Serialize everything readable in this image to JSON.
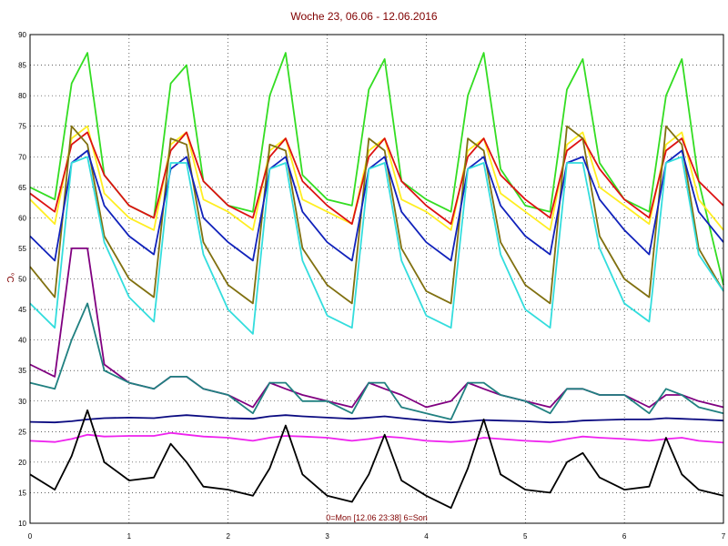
{
  "chart_data": {
    "type": "line",
    "title": "Woche 23, 06.06 - 12.06.2016",
    "ylabel": "°C",
    "footer": "0=Mon [12.06 23:38] 6=Son",
    "xlim": [
      0,
      7
    ],
    "ylim": [
      10,
      90
    ],
    "grid": true,
    "x_ticks": [
      "0",
      "1",
      "2",
      "3",
      "4",
      "5",
      "6",
      "7"
    ],
    "y_ticks": [
      "10",
      "15",
      "20",
      "25",
      "30",
      "35",
      "40",
      "45",
      "50",
      "55",
      "60",
      "65",
      "70",
      "75",
      "80",
      "85",
      "90"
    ],
    "x": [
      0.0,
      0.25,
      0.42,
      0.58,
      0.75,
      1.0,
      1.25,
      1.42,
      1.58,
      1.75,
      2.0,
      2.25,
      2.42,
      2.58,
      2.75,
      3.0,
      3.25,
      3.42,
      3.58,
      3.75,
      4.0,
      4.25,
      4.42,
      4.58,
      4.75,
      5.0,
      5.25,
      5.42,
      5.58,
      5.75,
      6.0,
      6.25,
      6.42,
      6.58,
      6.75,
      7.0
    ],
    "series": [
      {
        "color": "#33dd22",
        "values": [
          65,
          63,
          82,
          87,
          67,
          62,
          60,
          82,
          85,
          66,
          62,
          61,
          80,
          87,
          67,
          63,
          62,
          81,
          86,
          66,
          63,
          61,
          80,
          87,
          68,
          62,
          61,
          81,
          86,
          69,
          63,
          61,
          80,
          86,
          66,
          49
        ]
      },
      {
        "color": "#ffee22",
        "values": [
          63,
          59,
          73,
          75,
          64,
          60,
          58,
          72,
          74,
          63,
          61,
          58,
          71,
          73,
          63,
          61,
          59,
          71,
          73,
          63,
          61,
          58,
          71,
          73,
          64,
          61,
          58,
          72,
          74,
          65,
          62,
          59,
          72,
          74,
          63,
          58
        ]
      },
      {
        "color": "#dd1111",
        "values": [
          64,
          61,
          72,
          74,
          67,
          62,
          60,
          71,
          74,
          66,
          62,
          60,
          70,
          73,
          66,
          62,
          59,
          70,
          73,
          66,
          62,
          59,
          70,
          73,
          67,
          63,
          60,
          71,
          73,
          68,
          63,
          60,
          71,
          73,
          66,
          62
        ]
      },
      {
        "color": "#807010",
        "values": [
          52,
          47,
          75,
          72,
          57,
          50,
          47,
          73,
          72,
          56,
          49,
          46,
          72,
          71,
          55,
          49,
          46,
          73,
          71,
          55,
          48,
          46,
          73,
          71,
          56,
          49,
          46,
          75,
          73,
          57,
          50,
          47,
          75,
          72,
          55,
          48
        ]
      },
      {
        "color": "#1122bb",
        "values": [
          57,
          53,
          69,
          71,
          62,
          57,
          54,
          68,
          70,
          60,
          56,
          53,
          68,
          70,
          61,
          56,
          53,
          68,
          70,
          61,
          56,
          53,
          68,
          70,
          62,
          57,
          54,
          69,
          70,
          63,
          58,
          54,
          69,
          71,
          61,
          56
        ]
      },
      {
        "color": "#33dddd",
        "values": [
          46,
          42,
          69,
          70,
          56,
          47,
          43,
          69,
          69,
          54,
          45,
          41,
          68,
          69,
          53,
          44,
          42,
          68,
          69,
          53,
          44,
          42,
          68,
          69,
          54,
          45,
          42,
          69,
          69,
          55,
          46,
          43,
          69,
          70,
          54,
          48
        ]
      },
      {
        "color": "#800080",
        "values": [
          36,
          34,
          55,
          55,
          36,
          33,
          32,
          34,
          34,
          32,
          31,
          29,
          33,
          32,
          31,
          30,
          29,
          33,
          32,
          31,
          29,
          30,
          33,
          32,
          31,
          30,
          29,
          32,
          32,
          31,
          31,
          29,
          31,
          31,
          30,
          29
        ]
      },
      {
        "color": "#208080",
        "values": [
          33,
          32,
          40,
          46,
          35,
          33,
          32,
          34,
          34,
          32,
          31,
          28,
          33,
          33,
          30,
          30,
          28,
          33,
          33,
          29,
          28,
          27,
          33,
          33,
          31,
          30,
          28,
          32,
          32,
          31,
          31,
          28,
          32,
          31,
          29,
          28
        ]
      },
      {
        "color": "#0a0a80",
        "values": [
          26.6,
          26.5,
          26.7,
          27,
          27.2,
          27.3,
          27.2,
          27.5,
          27.7,
          27.5,
          27.2,
          27.1,
          27.5,
          27.7,
          27.5,
          27.3,
          27.1,
          27.3,
          27.5,
          27.2,
          26.8,
          26.5,
          26.7,
          26.9,
          26.8,
          26.7,
          26.5,
          26.6,
          26.8,
          26.9,
          27,
          27,
          27.2,
          27.1,
          27,
          26.8
        ]
      },
      {
        "color": "#ee22ee",
        "values": [
          23.5,
          23.3,
          23.8,
          24.5,
          24.2,
          24.3,
          24.3,
          24.8,
          24.5,
          24.2,
          24,
          23.5,
          24,
          24.3,
          24.2,
          24,
          23.5,
          23.8,
          24.2,
          24,
          23.5,
          23.3,
          23.5,
          24,
          23.8,
          23.5,
          23.3,
          23.8,
          24.2,
          24,
          23.8,
          23.5,
          23.8,
          24,
          23.5,
          23.2
        ]
      },
      {
        "color": "#000000",
        "values": [
          18,
          15.5,
          21,
          28.5,
          20,
          17,
          17.5,
          23,
          20,
          16,
          15.5,
          14.5,
          19,
          26,
          18,
          14.5,
          13.5,
          18,
          24.5,
          17,
          14.5,
          12.5,
          19,
          27,
          18,
          15.5,
          15,
          20,
          21.5,
          17.5,
          15.5,
          16,
          24,
          18,
          15.5,
          14.5
        ]
      }
    ]
  }
}
